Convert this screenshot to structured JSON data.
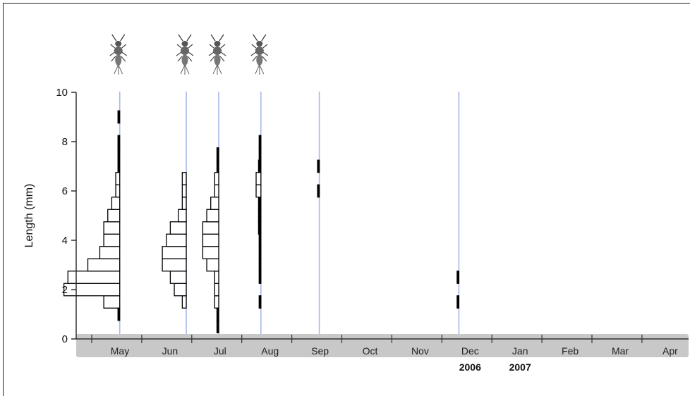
{
  "chart_data": {
    "type": "bar",
    "subtype": "length-frequency histograms by sampling date",
    "ylabel": "Length (mm)",
    "ylim": [
      0,
      10
    ],
    "yticks": [
      0,
      2,
      4,
      6,
      8,
      10
    ],
    "x_month_labels": [
      "May",
      "Jun",
      "Jul",
      "Aug",
      "Sep",
      "Oct",
      "Nov",
      "Dec",
      "Jan",
      "Feb",
      "Mar",
      "Apr"
    ],
    "year_labels": [
      {
        "text": "2006",
        "month": "Dec"
      },
      {
        "text": "2007",
        "month": "Jan"
      }
    ],
    "bin_width_mm": 0.5,
    "colors": {
      "sample_line": "#a7b9e6",
      "axis_band": "#c8c8c8",
      "bar_edge": "#000000"
    },
    "samples": [
      {
        "date": "2006-05-20",
        "has_insect_icon": true,
        "bins": [
          {
            "lower": 1.25,
            "count": 4
          },
          {
            "lower": 1.75,
            "count": 14
          },
          {
            "lower": 2.25,
            "count": 13
          },
          {
            "lower": 2.75,
            "count": 8
          },
          {
            "lower": 3.25,
            "count": 5
          },
          {
            "lower": 3.75,
            "count": 4
          },
          {
            "lower": 4.25,
            "count": 4
          },
          {
            "lower": 4.75,
            "count": 3
          },
          {
            "lower": 5.25,
            "count": 2
          },
          {
            "lower": 5.75,
            "count": 1
          },
          {
            "lower": 6.25,
            "count": 1
          },
          {
            "lower": 0.75,
            "count": 0.3
          },
          {
            "lower": 6.75,
            "count": 0.3
          },
          {
            "lower": 7.25,
            "count": 0.3
          },
          {
            "lower": 7.75,
            "count": 0.3
          },
          {
            "lower": 8.75,
            "count": 0.3
          }
        ]
      },
      {
        "date": "2006-06-30",
        "has_insect_icon": true,
        "bins": [
          {
            "lower": 1.25,
            "count": 1
          },
          {
            "lower": 1.75,
            "count": 3
          },
          {
            "lower": 2.25,
            "count": 4
          },
          {
            "lower": 2.75,
            "count": 6
          },
          {
            "lower": 3.25,
            "count": 6
          },
          {
            "lower": 3.75,
            "count": 5
          },
          {
            "lower": 4.25,
            "count": 4
          },
          {
            "lower": 4.75,
            "count": 2
          },
          {
            "lower": 5.25,
            "count": 1
          },
          {
            "lower": 5.75,
            "count": 1
          },
          {
            "lower": 6.25,
            "count": 1
          }
        ]
      },
      {
        "date": "2006-07-20",
        "has_insect_icon": true,
        "bins": [
          {
            "lower": 1.25,
            "count": 1
          },
          {
            "lower": 1.75,
            "count": 1
          },
          {
            "lower": 2.25,
            "count": 1
          },
          {
            "lower": 2.75,
            "count": 3
          },
          {
            "lower": 3.25,
            "count": 4
          },
          {
            "lower": 3.75,
            "count": 4
          },
          {
            "lower": 4.25,
            "count": 4
          },
          {
            "lower": 4.75,
            "count": 3
          },
          {
            "lower": 5.25,
            "count": 2
          },
          {
            "lower": 5.75,
            "count": 1
          },
          {
            "lower": 6.25,
            "count": 1
          },
          {
            "lower": 0.25,
            "count": 0.3
          },
          {
            "lower": 0.75,
            "count": 0.3
          },
          {
            "lower": 6.75,
            "count": 0.3
          },
          {
            "lower": 7.25,
            "count": 0.3
          }
        ]
      },
      {
        "date": "2006-08-15",
        "has_insect_icon": true,
        "bins": [
          {
            "lower": 1.25,
            "count": 0.3
          },
          {
            "lower": 2.25,
            "count": 0.3
          },
          {
            "lower": 2.75,
            "count": 0.3
          },
          {
            "lower": 3.25,
            "count": 0.3
          },
          {
            "lower": 3.75,
            "count": 0.3
          },
          {
            "lower": 4.25,
            "count": 0.6
          },
          {
            "lower": 4.75,
            "count": 0.6
          },
          {
            "lower": 5.25,
            "count": 0.6
          },
          {
            "lower": 5.75,
            "count": 1.2
          },
          {
            "lower": 6.25,
            "count": 1.2
          },
          {
            "lower": 6.75,
            "count": 0.6
          },
          {
            "lower": 7.25,
            "count": 0.3
          },
          {
            "lower": 7.75,
            "count": 0.3
          }
        ]
      },
      {
        "date": "2006-09-20",
        "has_insect_icon": false,
        "bins": [
          {
            "lower": 5.75,
            "count": 0.3
          },
          {
            "lower": 6.75,
            "count": 0.3
          }
        ]
      },
      {
        "date": "2006-12-15",
        "has_insect_icon": false,
        "bins": [
          {
            "lower": 1.25,
            "count": 0.3
          },
          {
            "lower": 2.25,
            "count": 0.3
          }
        ]
      }
    ]
  }
}
